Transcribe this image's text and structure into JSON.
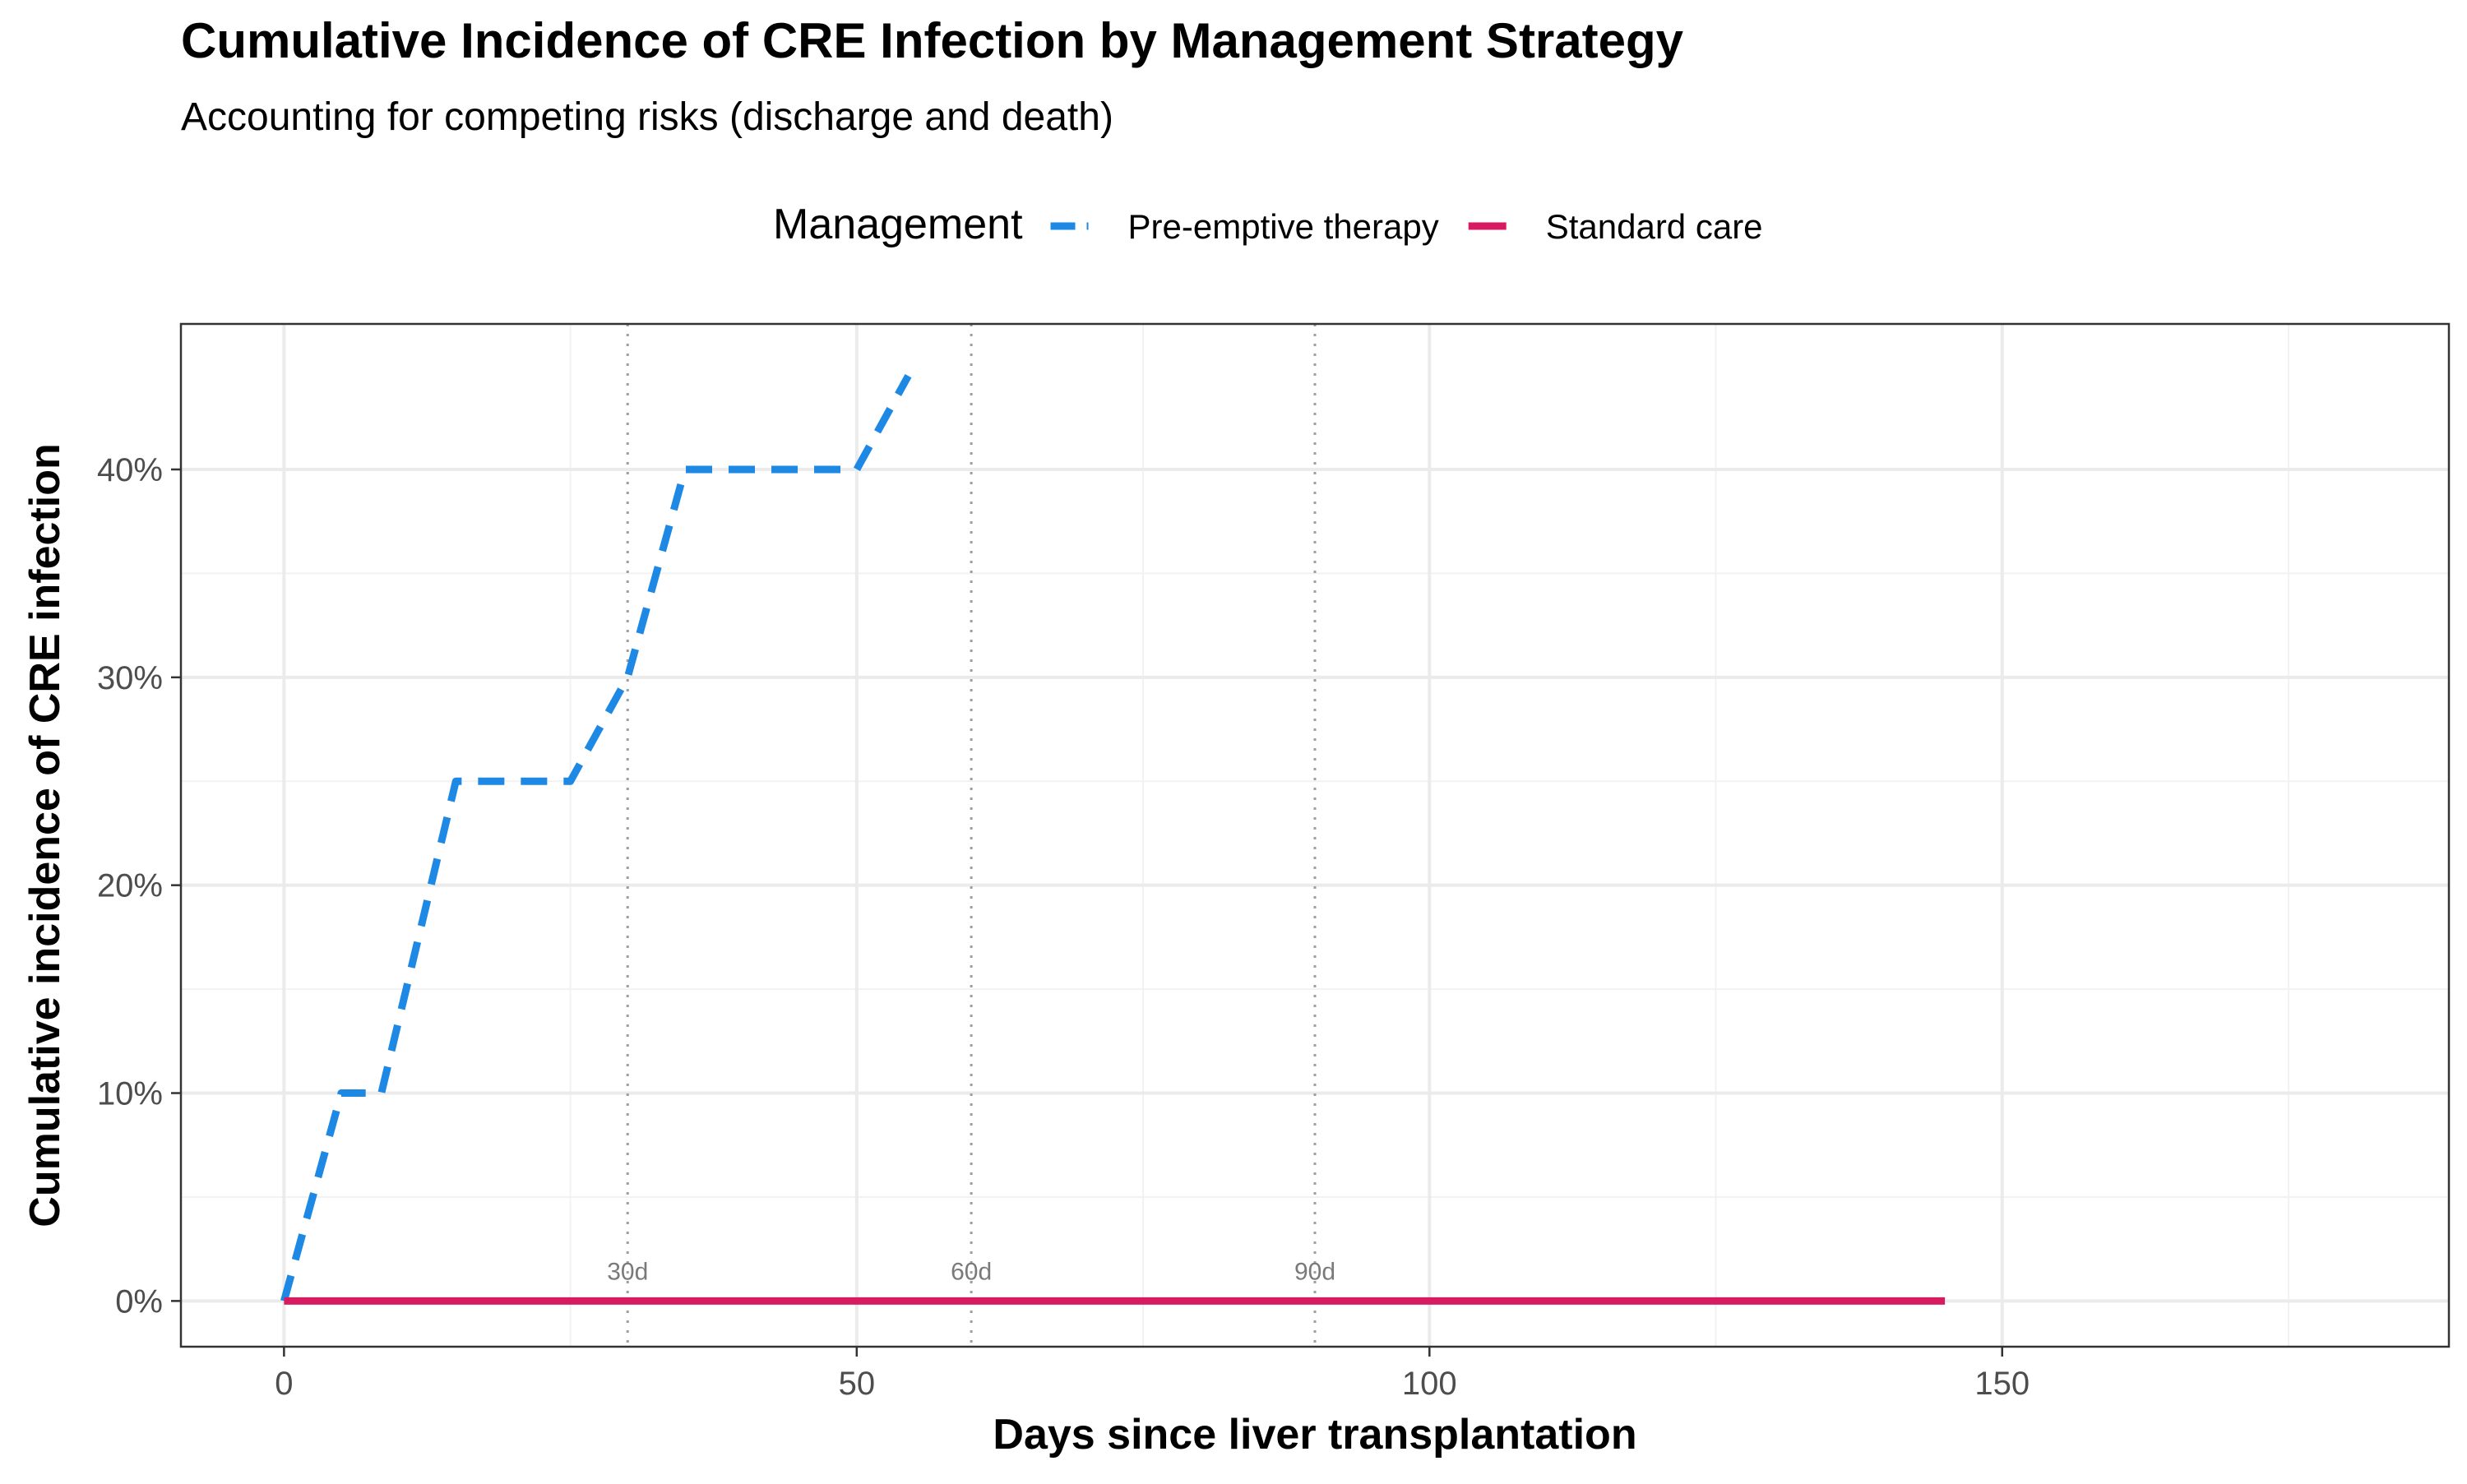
{
  "chart_data": {
    "type": "line",
    "title": "Cumulative Incidence of CRE Infection by Management Strategy",
    "subtitle": "Accounting for competing risks (discharge and death)",
    "xlabel": "Days since liver transplantation",
    "ylabel": "Cumulative incidence of CRE infection",
    "xlim": [
      -9,
      189
    ],
    "ylim": [
      -0.022,
      0.47
    ],
    "x_ticks": [
      0,
      50,
      100,
      150
    ],
    "x_tick_labels": [
      "0",
      "50",
      "100",
      "150"
    ],
    "y_ticks": [
      0,
      0.1,
      0.2,
      0.3,
      0.4
    ],
    "y_tick_labels": [
      "0%",
      "10%",
      "20%",
      "30%",
      "40%"
    ],
    "grid": true,
    "legend": {
      "title": "Management",
      "placement": "top-center"
    },
    "reference_lines": [
      {
        "x": 30,
        "label": "30d"
      },
      {
        "x": 60,
        "label": "60d"
      },
      {
        "x": 90,
        "label": "90d"
      }
    ],
    "series": [
      {
        "name": "Pre-emptive therapy",
        "color": "#1E88E5",
        "dash": "dashed",
        "x": [
          0,
          5,
          8.5,
          15,
          20,
          25,
          30,
          35,
          40,
          45,
          50,
          54.5
        ],
        "y": [
          0,
          0.1,
          0.1,
          0.25,
          0.25,
          0.25,
          0.3,
          0.4,
          0.4,
          0.4,
          0.4,
          0.445
        ]
      },
      {
        "name": "Standard care",
        "color": "#D81B60",
        "dash": "solid",
        "x": [
          0,
          145
        ],
        "y": [
          0,
          0
        ]
      }
    ]
  }
}
